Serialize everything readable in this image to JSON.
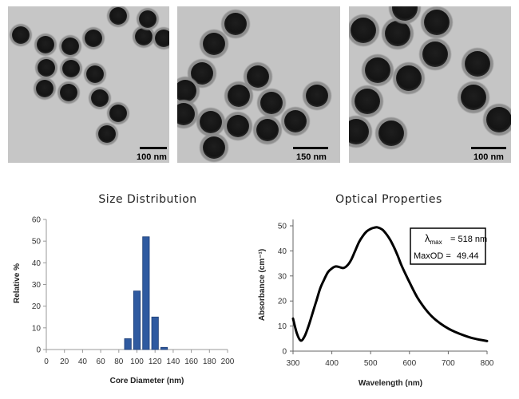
{
  "tem": {
    "scalebars": [
      "100 nm",
      "150 nm",
      "100 nm"
    ]
  },
  "chart_data": [
    {
      "type": "bar",
      "title": "Size Distribution",
      "xlabel": "Core Diameter (nm)",
      "ylabel": "Relative %",
      "xlim": [
        0,
        200
      ],
      "ylim": [
        0,
        60
      ],
      "xticks": [
        "0",
        "20",
        "40",
        "60",
        "80",
        "100",
        "120",
        "140",
        "160",
        "180",
        "200"
      ],
      "yticks": [
        "0",
        "10",
        "20",
        "30",
        "40",
        "50",
        "60"
      ],
      "bin_width": 10,
      "bins": [
        {
          "x": 90,
          "value": 5
        },
        {
          "x": 100,
          "value": 27
        },
        {
          "x": 110,
          "value": 52
        },
        {
          "x": 120,
          "value": 15
        },
        {
          "x": 130,
          "value": 1
        }
      ],
      "bar_color": "#2f5aa0",
      "grid": false
    },
    {
      "type": "line",
      "title": "Optical Properties",
      "xlabel": "Wavelength (nm)",
      "ylabel": "Absorbance (cm⁻¹)",
      "xlim": [
        300,
        800
      ],
      "ylim": [
        0,
        50
      ],
      "xticks": [
        "300",
        "400",
        "500",
        "600",
        "700",
        "800"
      ],
      "yticks": [
        "0",
        "10",
        "20",
        "30",
        "40",
        "50"
      ],
      "grid": false,
      "series": [
        {
          "x": [
            300,
            310,
            320,
            330,
            340,
            350,
            360,
            370,
            380,
            390,
            400,
            410,
            420,
            430,
            440,
            450,
            460,
            470,
            480,
            490,
            500,
            510,
            518,
            530,
            540,
            550,
            560,
            570,
            580,
            600,
            620,
            640,
            660,
            680,
            700,
            720,
            740,
            760,
            780,
            800
          ],
          "y": [
            13,
            7,
            4.2,
            6,
            10,
            15,
            20,
            25,
            28.5,
            31.5,
            33,
            33.8,
            33.5,
            33.2,
            34.2,
            36.5,
            40,
            43.5,
            46,
            47.8,
            48.8,
            49.3,
            49.4,
            48.5,
            46.8,
            44.5,
            41.5,
            38,
            34,
            27.5,
            21.5,
            17,
            13.5,
            11,
            9,
            7.5,
            6.3,
            5.3,
            4.6,
            4
          ],
          "color": "#000000"
        }
      ],
      "annotation": {
        "lambda_symbol": "λ",
        "lambda_sub": "max",
        "lambda_value": "=  518 nm",
        "maxod_label": "MaxOD =",
        "maxod_value": "49.44"
      }
    }
  ]
}
